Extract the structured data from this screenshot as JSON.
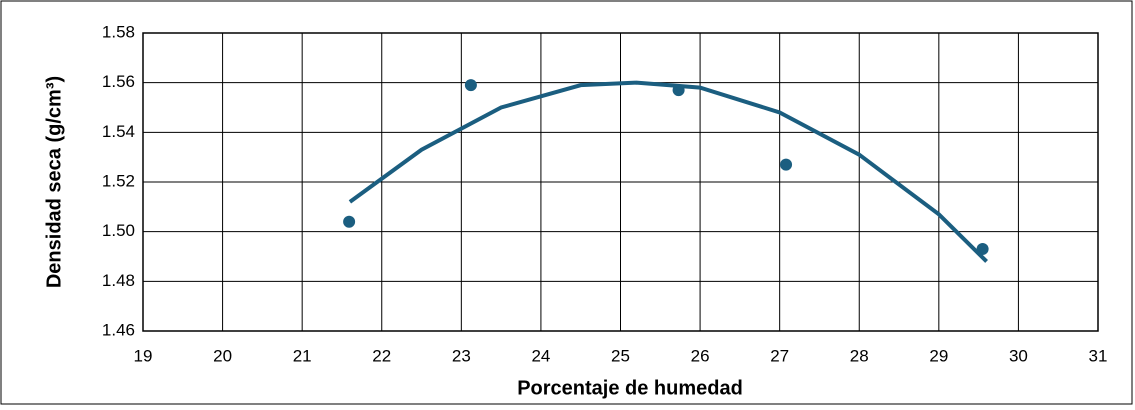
{
  "chart_data": {
    "type": "scatter",
    "xlabel": "Porcentaje de humedad",
    "ylabel": "Densidad seca (g/cm³)",
    "xlim": [
      19,
      31
    ],
    "xticks": [
      19,
      20,
      21,
      22,
      23,
      24,
      25,
      26,
      27,
      28,
      29,
      30,
      31
    ],
    "ylim": [
      1.46,
      1.58
    ],
    "yticks": [
      1.46,
      1.48,
      1.5,
      1.52,
      1.54,
      1.56,
      1.58
    ],
    "grid": true,
    "series": [
      {
        "mode": "markers",
        "color": "#1b5e80",
        "x": [
          21.59,
          23.12,
          25.73,
          27.08,
          29.55
        ],
        "values": [
          1.504,
          1.559,
          1.557,
          1.527,
          1.493
        ]
      },
      {
        "mode": "line",
        "color": "#1b5e80",
        "x": [
          21.6,
          22.5,
          23.5,
          24.5,
          25.2,
          26,
          27,
          28,
          29,
          29.6
        ],
        "values": [
          1.512,
          1.533,
          1.55,
          1.559,
          1.56,
          1.558,
          1.548,
          1.531,
          1.507,
          1.488
        ]
      }
    ]
  }
}
